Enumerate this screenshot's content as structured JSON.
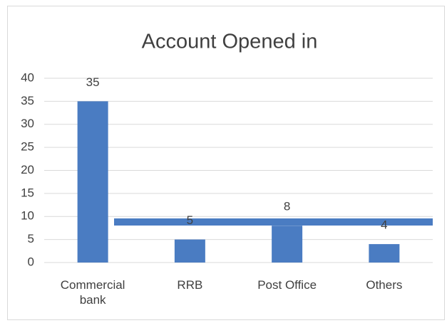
{
  "chart_data": {
    "type": "bar",
    "title": "Account Opened in",
    "categories": [
      "Commercial bank",
      "RRB",
      "Post Office",
      "Others"
    ],
    "values": [
      35,
      5,
      8,
      4
    ],
    "color": "#4a7cc2",
    "ylim": [
      0,
      40
    ],
    "yticks": [
      0,
      5,
      10,
      15,
      20,
      25,
      30,
      35,
      40
    ],
    "grid": true
  }
}
